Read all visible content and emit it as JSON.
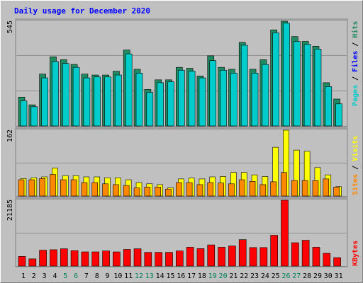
{
  "chart_data": [
    {
      "type": "bar",
      "title": "Daily usage for December 2020",
      "ylabel": "Pages / Files / Hits",
      "ytick": "545",
      "ylim": [
        0,
        545
      ],
      "categories": [
        "1",
        "2",
        "3",
        "4",
        "5",
        "6",
        "7",
        "8",
        "9",
        "10",
        "11",
        "12",
        "13",
        "14",
        "15",
        "16",
        "17",
        "18",
        "19",
        "20",
        "21",
        "22",
        "23",
        "24",
        "25",
        "26",
        "27",
        "28",
        "29",
        "30",
        "31"
      ],
      "series": [
        {
          "name": "Hits",
          "values": [
            150,
            110,
            270,
            360,
            345,
            320,
            270,
            265,
            265,
            285,
            395,
            295,
            190,
            240,
            240,
            305,
            300,
            260,
            365,
            305,
            295,
            435,
            295,
            345,
            500,
            545,
            465,
            440,
            415,
            225,
            140
          ]
        },
        {
          "name": "Files",
          "values": [
            130,
            100,
            250,
            335,
            325,
            305,
            250,
            255,
            255,
            265,
            375,
            275,
            175,
            225,
            230,
            290,
            285,
            250,
            340,
            290,
            275,
            420,
            275,
            320,
            485,
            535,
            440,
            425,
            400,
            205,
            115
          ]
        },
        {
          "name": "Pages",
          "values": [
            0,
            0,
            0,
            0,
            0,
            0,
            0,
            0,
            0,
            0,
            0,
            0,
            0,
            0,
            0,
            0,
            0,
            0,
            0,
            0,
            0,
            0,
            0,
            0,
            0,
            0,
            0,
            0,
            0,
            0,
            0
          ]
        }
      ],
      "colors": {
        "Hits": "#208a60",
        "Files": "#00cccc",
        "Pages": "#00cccc"
      }
    },
    {
      "type": "bar",
      "ylabel": "Sites / Visits",
      "ytick": "162",
      "ylim": [
        0,
        162
      ],
      "categories": [
        "1",
        "2",
        "3",
        "4",
        "5",
        "6",
        "7",
        "8",
        "9",
        "10",
        "11",
        "12",
        "13",
        "14",
        "15",
        "16",
        "17",
        "18",
        "19",
        "20",
        "21",
        "22",
        "23",
        "24",
        "25",
        "26",
        "27",
        "28",
        "29",
        "30",
        "31"
      ],
      "series": [
        {
          "name": "Visits",
          "values": [
            43,
            45,
            47,
            69,
            50,
            50,
            47,
            47,
            45,
            45,
            40,
            33,
            30,
            28,
            20,
            42,
            44,
            42,
            47,
            48,
            58,
            58,
            52,
            48,
            120,
            162,
            113,
            110,
            70,
            52,
            23
          ]
        },
        {
          "name": "Sites",
          "values": [
            40,
            40,
            43,
            53,
            40,
            40,
            33,
            33,
            30,
            28,
            26,
            20,
            22,
            22,
            17,
            33,
            33,
            28,
            33,
            32,
            30,
            40,
            36,
            28,
            35,
            58,
            38,
            38,
            38,
            42,
            22
          ]
        }
      ],
      "colors": {
        "Visits": "#ffff00",
        "Sites": "#ff8800"
      }
    },
    {
      "type": "bar",
      "ylabel": "KBytes",
      "ytick": "21185",
      "ylim": [
        0,
        21185
      ],
      "categories": [
        "1",
        "2",
        "3",
        "4",
        "5",
        "6",
        "7",
        "8",
        "9",
        "10",
        "11",
        "12",
        "13",
        "14",
        "15",
        "16",
        "17",
        "18",
        "19",
        "20",
        "21",
        "22",
        "23",
        "24",
        "25",
        "26",
        "27",
        "28",
        "29",
        "30",
        "31"
      ],
      "series": [
        {
          "name": "KBytes",
          "values": [
            3100,
            2300,
            5100,
            5250,
            5550,
            4950,
            4550,
            4550,
            4850,
            4550,
            5350,
            5550,
            4400,
            4400,
            4400,
            4850,
            6050,
            5600,
            6800,
            6050,
            6450,
            8500,
            5950,
            5950,
            9900,
            21185,
            7500,
            8300,
            6050,
            4100,
            2700
          ]
        }
      ],
      "colors": {
        "KBytes": "#ff0000"
      }
    }
  ],
  "weekend_days": [
    5,
    6,
    12,
    13,
    19,
    20,
    26,
    27
  ],
  "colors": {
    "background": "#c0c0c0",
    "plot": "#c0c0c0",
    "title": "#0000ff",
    "weekday": "#000000",
    "weekend": "#00805c"
  }
}
